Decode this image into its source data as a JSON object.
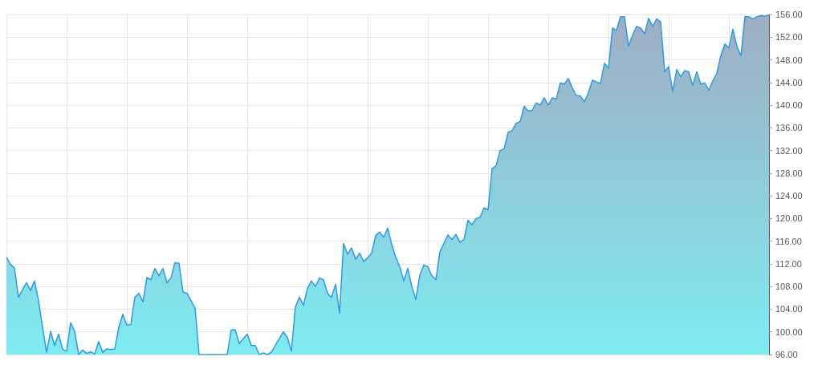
{
  "chart_data": {
    "type": "area",
    "categories": [
      null,
      null,
      null,
      null,
      null,
      null,
      null,
      null,
      null,
      null,
      null,
      null,
      null,
      null,
      null,
      null,
      null,
      null,
      null,
      null,
      null,
      null,
      null,
      null,
      null,
      null,
      null,
      null,
      null,
      null,
      null,
      null,
      null,
      null,
      null,
      null,
      null,
      null,
      null,
      null,
      null,
      null,
      null,
      null,
      null,
      null,
      null,
      null,
      null,
      null,
      null,
      null,
      null,
      null,
      null,
      null,
      null,
      null,
      null,
      null,
      null,
      null,
      null,
      null,
      null,
      null,
      null,
      null,
      null,
      null,
      null,
      null,
      null,
      null,
      null,
      null,
      null,
      null,
      null,
      null,
      null,
      null,
      null,
      null,
      null,
      null,
      null,
      null,
      null,
      null,
      null,
      null,
      null,
      null,
      null,
      null,
      null,
      null,
      null,
      null,
      null,
      null,
      null,
      null,
      null,
      null,
      null,
      null,
      null,
      null,
      null,
      null,
      null,
      null,
      null,
      null,
      null,
      null,
      null,
      null,
      null,
      null,
      null,
      null,
      null,
      null,
      null,
      null,
      null,
      null,
      null,
      null,
      null,
      null,
      null,
      null,
      null,
      null,
      null,
      null,
      null,
      null,
      null,
      null,
      null,
      null,
      null,
      null,
      null,
      null,
      null,
      null,
      null,
      null,
      null,
      null,
      null,
      null,
      null,
      null,
      null,
      null,
      null,
      null,
      null,
      null,
      null,
      null,
      null,
      null,
      null,
      null,
      null,
      null,
      null,
      null,
      null,
      null,
      null,
      null,
      null,
      null,
      null,
      null,
      null,
      null,
      null,
      null,
      null,
      null,
      null
    ],
    "series": [
      {
        "color": "#2b9be8",
        "values": [
          113.2,
          111.9,
          111.3,
          106.1,
          107.4,
          108.7,
          107.3,
          109.0,
          105.5,
          100.8,
          96.4,
          100.1,
          97.6,
          99.6,
          96.9,
          96.6,
          101.6,
          100.1,
          96.0,
          96.8,
          96.2,
          96.5,
          96.1,
          98.3,
          96.4,
          97.0,
          96.9,
          97.0,
          100.8,
          103.1,
          101.2,
          101.3,
          106.1,
          106.8,
          105.3,
          109.6,
          109.2,
          111.2,
          109.9,
          111.2,
          108.7,
          109.5,
          112.2,
          112.1,
          107.0,
          106.8,
          105.5,
          104.2,
          96.0,
          null,
          null,
          null,
          null,
          null,
          null,
          96.0,
          100.3,
          100.4,
          97.9,
          98.8,
          99.6,
          97.6,
          97.6,
          96.0,
          96.3,
          96.0,
          96.4,
          97.6,
          98.8,
          100.0,
          99.0,
          96.6,
          104.4,
          106.1,
          104.7,
          107.7,
          109.0,
          108.0,
          109.5,
          109.2,
          106.8,
          106.1,
          108.4,
          103.3,
          115.6,
          113.7,
          114.8,
          112.8,
          113.9,
          112.4,
          113.1,
          113.9,
          117.0,
          117.6,
          116.7,
          118.3,
          115.4,
          113.2,
          111.5,
          109.0,
          111.2,
          108.0,
          105.7,
          110.0,
          111.8,
          111.5,
          109.9,
          109.2,
          114.1,
          115.6,
          117.1,
          116.3,
          117.2,
          115.8,
          116.3,
          119.7,
          118.9,
          120.0,
          120.2,
          121.9,
          121.5,
          128.8,
          129.3,
          132.0,
          132.3,
          135.2,
          135.5,
          136.8,
          137.1,
          139.8,
          139.0,
          139.1,
          140.4,
          140.0,
          141.3,
          140.0,
          141.3,
          141.1,
          143.9,
          143.7,
          144.7,
          143.0,
          141.7,
          141.6,
          140.6,
          142.2,
          144.4,
          144.1,
          143.8,
          147.4,
          146.5,
          153.6,
          153.2,
          155.6,
          155.6,
          150.4,
          152.3,
          153.9,
          153.6,
          152.6,
          155.3,
          153.9,
          155.2,
          154.7,
          145.9,
          146.8,
          142.4,
          146.3,
          145.0,
          146.1,
          145.9,
          143.5,
          145.9,
          143.7,
          143.9,
          142.6,
          144.3,
          145.6,
          148.8,
          150.8,
          150.1,
          153.4,
          150.4,
          148.7,
          155.6,
          155.6,
          155.2,
          155.6,
          155.8,
          155.7,
          155.9
        ]
      }
    ],
    "ylim": [
      96,
      156
    ],
    "yticks": [
      {
        "value": 96,
        "label": "96.00"
      },
      {
        "value": 100,
        "label": "100.00"
      },
      {
        "value": 104,
        "label": "104.00"
      },
      {
        "value": 108,
        "label": "108.00"
      },
      {
        "value": 112,
        "label": "112.00"
      },
      {
        "value": 116,
        "label": "116.00"
      },
      {
        "value": 120,
        "label": "120.00"
      },
      {
        "value": 124,
        "label": "124.00"
      },
      {
        "value": 128,
        "label": "128.00"
      },
      {
        "value": 132,
        "label": "132.00"
      },
      {
        "value": 136,
        "label": "136.00"
      },
      {
        "value": 140,
        "label": "140.00"
      },
      {
        "value": 144,
        "label": "144.00"
      },
      {
        "value": 148,
        "label": "148.00"
      },
      {
        "value": 152,
        "label": "152.00"
      },
      {
        "value": 156,
        "label": "156.00"
      }
    ],
    "grid": true
  }
}
